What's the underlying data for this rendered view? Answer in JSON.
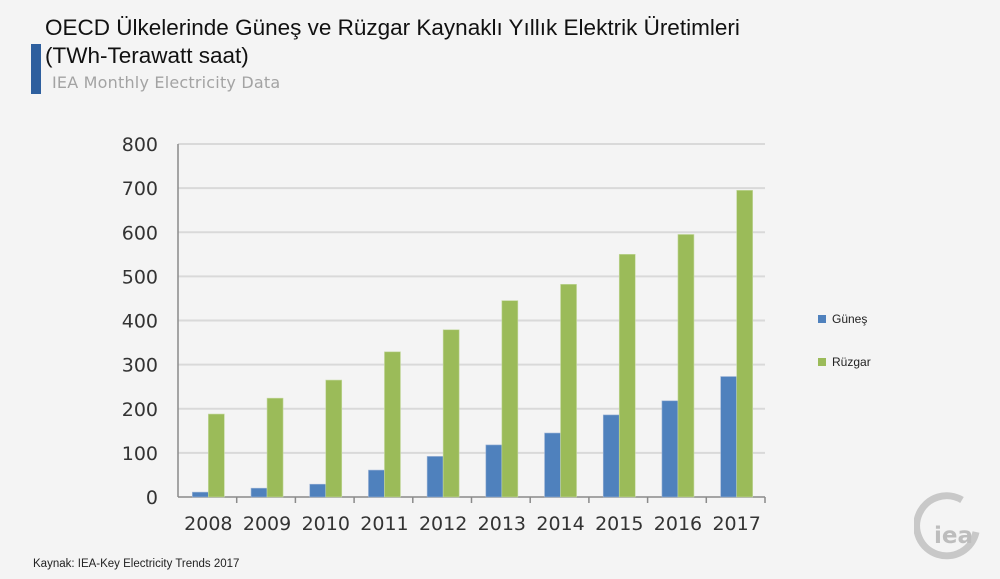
{
  "header": {
    "title": "OECD Ülkelerinde Güneş ve Rüzgar Kaynaklı Yıllık Elektrik Üretimleri (TWh-Terawatt saat)",
    "subtitle": "IEA Monthly Electricity Data"
  },
  "source": "Kaynak: IEA-Key Electricity Trends 2017",
  "logo_text": "iea",
  "chart_data": {
    "type": "bar",
    "title": "OECD Ülkelerinde Güneş ve Rüzgar Kaynaklı Yıllık Elektrik Üretimleri (TWh-Terawatt saat)",
    "categories": [
      "2008",
      "2009",
      "2010",
      "2011",
      "2012",
      "2013",
      "2014",
      "2015",
      "2016",
      "2017"
    ],
    "series": [
      {
        "name": "Güneş",
        "color": "#4f81bd",
        "values": [
          11,
          20,
          29,
          61,
          92,
          118,
          145,
          186,
          218,
          273
        ]
      },
      {
        "name": "Rüzgar",
        "color": "#9bbb59",
        "values": [
          188,
          224,
          265,
          329,
          379,
          445,
          482,
          550,
          595,
          695
        ]
      }
    ],
    "ylim": [
      0,
      800
    ],
    "yticks": [
      "0",
      "100",
      "200",
      "300",
      "400",
      "500",
      "600",
      "700",
      "800"
    ],
    "grid": true,
    "legend": "right"
  }
}
